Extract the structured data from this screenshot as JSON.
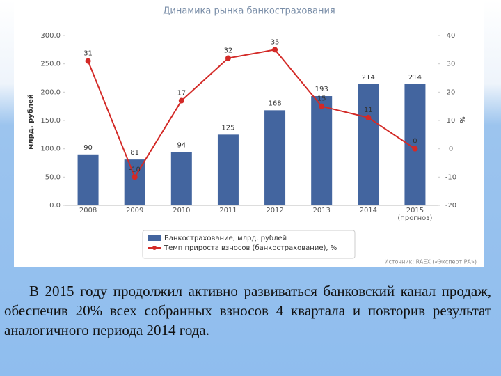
{
  "chart_data": {
    "type": "bar-line",
    "title": "Динамика рынка банкострахования",
    "categories": [
      "2008",
      "2009",
      "2010",
      "2011",
      "2012",
      "2013",
      "2014",
      "2015 (прогноз)"
    ],
    "series": [
      {
        "name": "Банкострахование, млрд. рублей",
        "color": "#43659f",
        "type": "bar",
        "axis": "y",
        "values": [
          90,
          81,
          94,
          125,
          168,
          193,
          214,
          214
        ]
      },
      {
        "name": "Темп прироста взносов (банкострахование), %",
        "color": "#d32a27",
        "type": "line",
        "axis": "y2",
        "values": [
          31,
          -10,
          17,
          32,
          35,
          15,
          11,
          0
        ]
      }
    ],
    "ylabel": "млрд. рублей",
    "y2label": "%",
    "ylim": [
      0,
      300
    ],
    "yticks": [
      {
        "value": 0,
        "label": "0.0"
      },
      {
        "value": 50,
        "label": "50.0"
      },
      {
        "value": 100,
        "label": "100.0"
      },
      {
        "value": 150,
        "label": "150.0"
      },
      {
        "value": 200,
        "label": "200.0"
      },
      {
        "value": 250,
        "label": "250.0"
      },
      {
        "value": 300,
        "label": "300.0"
      }
    ],
    "y2lim": [
      -20,
      40
    ],
    "y2ticks": [
      -20,
      -10,
      0,
      10,
      20,
      30,
      40
    ],
    "source": "Источник: RAEX («Эксперт РА»)",
    "grid": false
  },
  "body_text": "В 2015 году продолжил активно развиваться банковский канал продаж, обеспечив 20% всех собранных взносов 4 квартала и повторив результат аналогичного периода 2014 года."
}
